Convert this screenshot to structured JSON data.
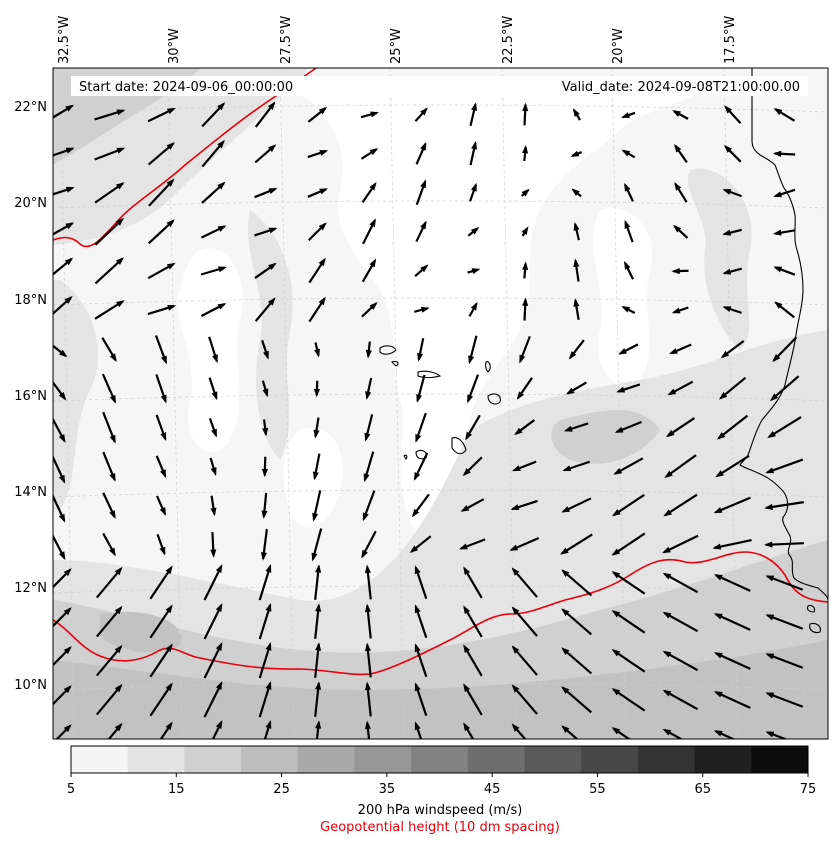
{
  "header": {
    "start_date": "Start date: 2024-09-06_00:00:00",
    "valid_date": "Valid_date: 2024-09-08T21:00:00.00"
  },
  "axes": {
    "lon_labels": [
      "32.5°W",
      "30°W",
      "27.5°W",
      "25°W",
      "22.5°W",
      "20°W",
      "17.5°W"
    ],
    "lat_labels": [
      "22°N",
      "20°N",
      "18°N",
      "16°N",
      "14°N",
      "12°N",
      "10°N"
    ],
    "gridlines": true,
    "grid_style": "dashed light gray"
  },
  "colorbar": {
    "ticks": [
      "5",
      "15",
      "25",
      "35",
      "45",
      "55",
      "65",
      "75"
    ],
    "colors": [
      "#f5f5f5",
      "#e3e3e3",
      "#d0d0d0",
      "#bdbdbd",
      "#a9a9a9",
      "#969696",
      "#828282",
      "#6e6e6e",
      "#5a5a5a",
      "#474747",
      "#333333",
      "#202020",
      "#0d0d0d"
    ],
    "label": "200 hPa windspeed (m/s)",
    "sublabel": "Geopotential height (10 dm spacing)",
    "sublabel_color": "#e8000b"
  },
  "map": {
    "field": "200 hPa wind vectors over shaded windspeed",
    "contour_color": "#e8000b",
    "coast_color": "#000000",
    "arrow_color": "#000000"
  }
}
